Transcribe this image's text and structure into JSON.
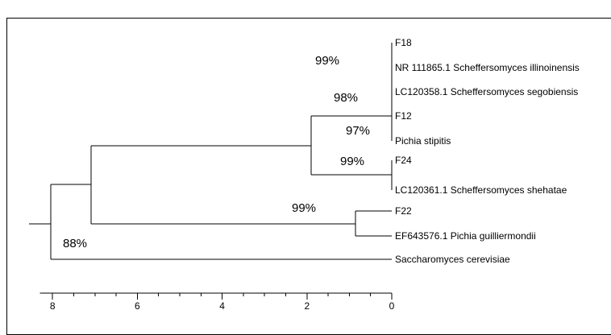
{
  "tree": {
    "tips": [
      {
        "id": "f18",
        "label": "F18"
      },
      {
        "id": "nr111865",
        "label": "NR 111865.1 Scheffersomyces illinoinensis"
      },
      {
        "id": "lc120358",
        "label": "LC120358.1 Scheffersomyces segobiensis"
      },
      {
        "id": "f12",
        "label": "F12"
      },
      {
        "id": "pichia-stipitis",
        "label": "Pichia stipitis"
      },
      {
        "id": "f24",
        "label": "F24"
      },
      {
        "id": "lc120361",
        "label": "LC120361.1 Scheffersomyces shehatae"
      },
      {
        "id": "f22",
        "label": "F22"
      },
      {
        "id": "ef643576",
        "label": "EF643576.1 Pichia guilliermondii"
      },
      {
        "id": "saccharomyces",
        "label": "Saccharomyces cerevisiae"
      }
    ],
    "support_values": [
      {
        "id": "illinoinensis-clade",
        "label": "99%"
      },
      {
        "id": "segobiensis-clade",
        "label": "98%"
      },
      {
        "id": "stipitis-clade",
        "label": "97%"
      },
      {
        "id": "shehatae-clade",
        "label": "99%"
      },
      {
        "id": "guilliermondii-clade",
        "label": "99%"
      },
      {
        "id": "ingroup-clade",
        "label": "88%"
      }
    ]
  },
  "scale_axis": {
    "range": [
      8.3,
      0
    ],
    "ticks": [
      {
        "value": 8,
        "label": "8"
      },
      {
        "value": 6,
        "label": "6"
      },
      {
        "value": 4,
        "label": "4"
      },
      {
        "value": 2,
        "label": "2"
      },
      {
        "value": 0,
        "label": "0"
      }
    ]
  }
}
